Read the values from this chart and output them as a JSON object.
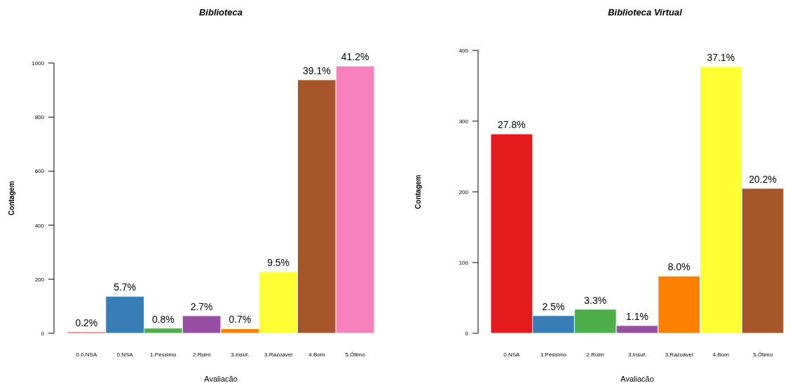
{
  "chart_data": [
    {
      "type": "bar",
      "title": "Biblioteca",
      "xlabel": "Avaliacão",
      "ylabel": "Contagem",
      "categories": [
        "0.0.NSA",
        "0.NSA",
        "1.Péssimo",
        "2.Ruim",
        "3.Insuf.",
        "3.Razoável",
        "4.Bom",
        "5.Ótimo"
      ],
      "values": [
        5,
        137,
        19,
        65,
        17,
        228,
        938,
        989
      ],
      "colors": [
        "#e41a1c",
        "#377eb8",
        "#4daf4a",
        "#984ea3",
        "#ff7f00",
        "#ffff33",
        "#a65628",
        "#f781bf"
      ],
      "annotations": [
        {
          "text": "0.2%",
          "x": "0.0.NSA",
          "y": 5
        },
        {
          "text": "5.7%",
          "x": "0.NSA",
          "y": 137
        },
        {
          "text": "0.8%",
          "x": "1.Péssimo",
          "y": 19
        },
        {
          "text": "2.7%",
          "x": "2.Ruim",
          "y": 65
        },
        {
          "text": "0.7%",
          "x": "3.Insuf.",
          "y": 17
        },
        {
          "text": "9.5%",
          "x": "3.Razoável",
          "y": 228
        },
        {
          "text": "39.1%",
          "x": "4.Bom",
          "y": 938
        },
        {
          "text": "41.2%",
          "x": "5.Ótimo",
          "y": 989
        }
      ],
      "ylim": [
        0,
        1000
      ],
      "yticks": [
        0,
        200,
        400,
        600,
        800,
        1000
      ],
      "grid": false
    },
    {
      "type": "bar",
      "title": "Biblioteca Virtual",
      "xlabel": "Avaliacão",
      "ylabel": "Contagem",
      "categories": [
        "0.NSA",
        "1.Péssimo",
        "2.Ruim",
        "3.Insuf.",
        "3.Razoável",
        "4.Bom",
        "5.Ótimo"
      ],
      "values": [
        282,
        25,
        34,
        11,
        81,
        377,
        205
      ],
      "colors": [
        "#e41a1c",
        "#377eb8",
        "#4daf4a",
        "#984ea3",
        "#ff7f00",
        "#ffff33",
        "#a65628"
      ],
      "annotations": [
        {
          "text": "27.8%",
          "x": "0.NSA",
          "y": 282
        },
        {
          "text": "2.5%",
          "x": "1.Péssimo",
          "y": 25
        },
        {
          "text": "3.3%",
          "x": "2.Ruim",
          "y": 34
        },
        {
          "text": "1.1%",
          "x": "3.Insuf.",
          "y": 11
        },
        {
          "text": "8.0%",
          "x": "3.Razoável",
          "y": 81
        },
        {
          "text": "37.1%",
          "x": "4.Bom",
          "y": 377
        },
        {
          "text": "20.2%",
          "x": "5.Ótimo",
          "y": 205
        }
      ],
      "ylim": [
        0,
        400
      ],
      "yticks": [
        0,
        100,
        200,
        300,
        400
      ],
      "grid": false
    }
  ]
}
